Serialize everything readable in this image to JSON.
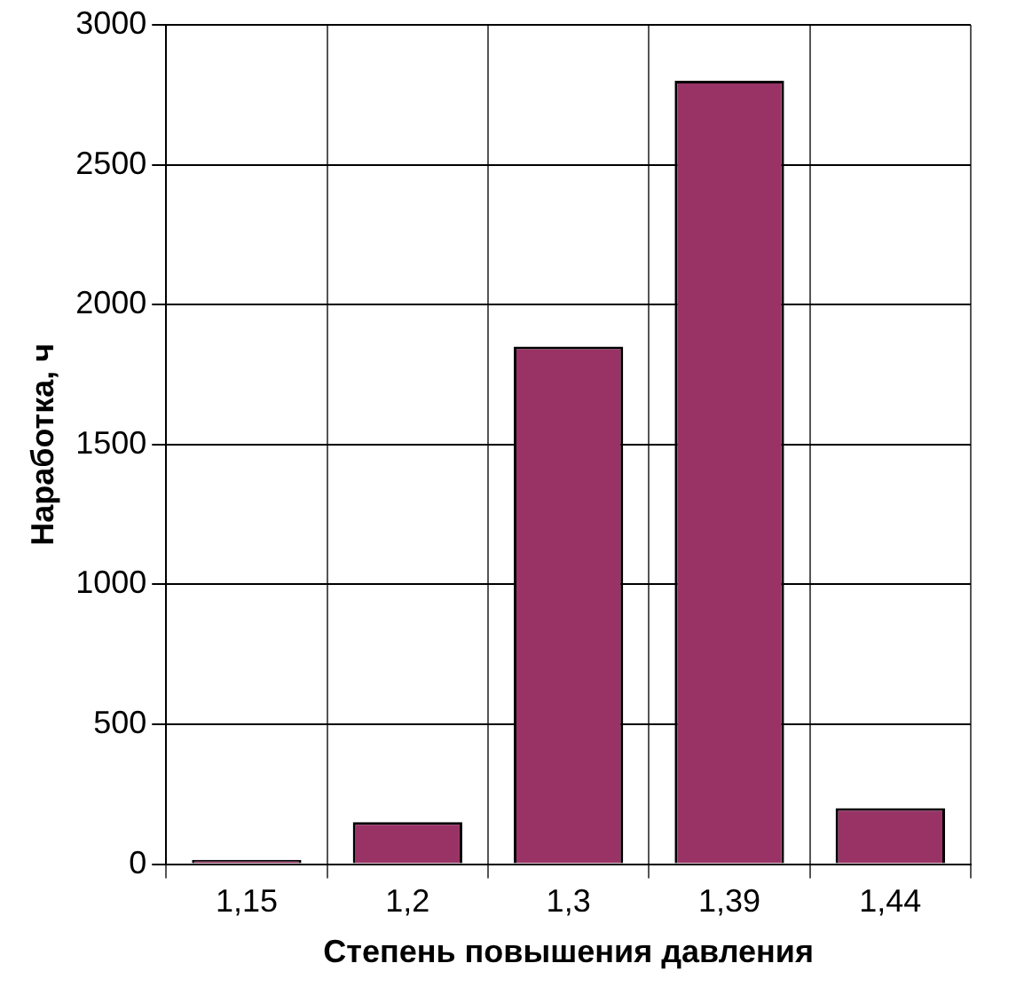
{
  "chart_data": {
    "type": "bar",
    "xlabel": "Степень повышения давления",
    "ylabel": "Наработка, ч",
    "categories": [
      "1,15",
      "1,2",
      "1,3",
      "1,39",
      "1,44"
    ],
    "values": [
      15,
      150,
      1850,
      2800,
      200
    ],
    "color": "#993366",
    "ylim": [
      0,
      3000
    ],
    "yticks": [
      0,
      500,
      1000,
      1500,
      2000,
      2500,
      3000
    ],
    "grid": true,
    "legend": false
  }
}
